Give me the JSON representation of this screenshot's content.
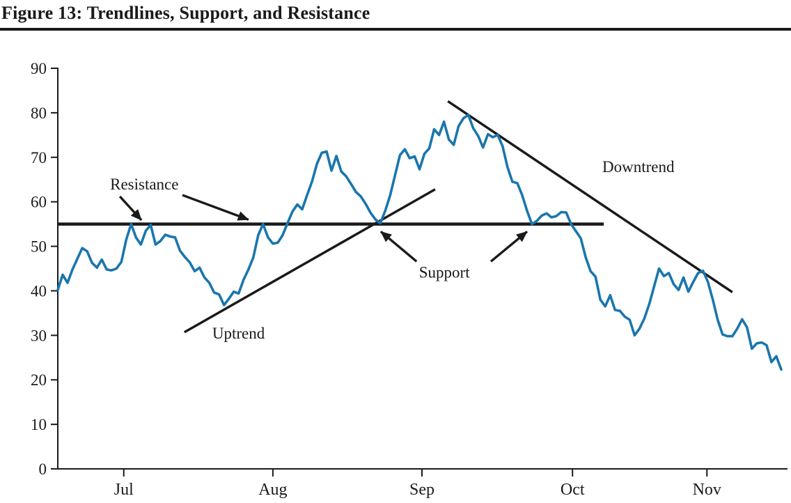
{
  "figure": {
    "title": "Figure 13: Trendlines, Support, and Resistance"
  },
  "colors": {
    "ink": "#1a1a1a",
    "price_line": "#1a76ad",
    "background": "#ffffff"
  },
  "chart_data": {
    "type": "line",
    "title": "Figure 13: Trendlines, Support, and Resistance",
    "xlabel": "",
    "ylabel": "",
    "grid": false,
    "legend": "none",
    "y_axis": {
      "min": 0,
      "max": 90,
      "tick_step": 10,
      "ticks": [
        90,
        80,
        70,
        60,
        50,
        40,
        30,
        20,
        10,
        0
      ]
    },
    "x_axis": {
      "unit": "trading-day index",
      "months": [
        {
          "label": "Jul",
          "day": 13.5
        },
        {
          "label": "Aug",
          "day": 44.0
        },
        {
          "label": "Sep",
          "day": 74.5
        },
        {
          "label": "Oct",
          "day": 105.3
        },
        {
          "label": "Nov",
          "day": 132.8
        }
      ]
    },
    "series": [
      {
        "name": "price",
        "values": [
          40.2,
          43.6,
          41.8,
          44.8,
          47.2,
          49.6,
          48.9,
          46.3,
          45.2,
          47.0,
          44.8,
          44.6,
          45.0,
          46.5,
          51.5,
          55.0,
          52.0,
          50.4,
          53.5,
          54.8,
          50.4,
          51.2,
          52.6,
          52.2,
          52.0,
          49.0,
          47.6,
          46.4,
          44.4,
          45.2,
          43.0,
          41.8,
          39.6,
          39.2,
          36.8,
          38.2,
          39.8,
          39.4,
          42.5,
          44.8,
          47.5,
          52.5,
          55.0,
          52.0,
          50.6,
          50.8,
          52.5,
          55.2,
          57.8,
          59.4,
          58.3,
          61.5,
          64.5,
          68.5,
          71.0,
          71.3,
          67.0,
          70.3,
          66.8,
          65.7,
          64.0,
          62.2,
          61.2,
          59.5,
          57.5,
          56.0,
          55.2,
          58.0,
          61.5,
          66.0,
          70.5,
          71.8,
          69.8,
          70.2,
          67.3,
          70.8,
          72.0,
          76.3,
          75.0,
          78.0,
          74.0,
          72.8,
          77.0,
          78.8,
          79.5,
          76.5,
          74.8,
          72.2,
          75.2,
          74.5,
          75.0,
          72.5,
          67.8,
          64.5,
          64.2,
          61.5,
          58.0,
          55.0,
          55.7,
          56.9,
          57.4,
          56.5,
          56.8,
          57.7,
          57.6,
          55.0,
          53.4,
          51.8,
          47.5,
          44.4,
          43.2,
          38.0,
          36.5,
          39.0,
          35.7,
          35.5,
          34.2,
          33.5,
          30.0,
          31.5,
          33.8,
          37.0,
          41.0,
          45.0,
          43.3,
          44.0,
          41.5,
          40.2,
          43.0,
          39.8,
          42.0,
          44.0,
          44.5,
          42.0,
          38.0,
          33.5,
          30.2,
          29.8,
          29.8,
          31.5,
          33.6,
          31.8,
          27.0,
          28.2,
          28.4,
          27.8,
          24.0,
          25.3,
          22.3
        ]
      }
    ],
    "annotations": {
      "resistance_support_line": {
        "value": 55,
        "from_day": 0,
        "to_day": 111.7
      },
      "uptrend_line": {
        "from": {
          "day": 25.9,
          "value": 30.7
        },
        "to": {
          "day": 77.2,
          "value": 62.8
        }
      },
      "downtrend_line": {
        "from": {
          "day": 79.8,
          "value": 82.6
        },
        "to": {
          "day": 138.0,
          "value": 39.7
        }
      },
      "labels": [
        {
          "id": "resistance",
          "text": "Resistance",
          "day": 10.7,
          "value": 62.8
        },
        {
          "id": "support",
          "text": "Support",
          "day": 73.9,
          "value": 43.0
        },
        {
          "id": "uptrend",
          "text": "Uptrend",
          "day": 31.6,
          "value": 29.3
        },
        {
          "id": "downtrend",
          "text": "Downtrend",
          "day": 111.4,
          "value": 66.7
        }
      ],
      "arrows": [
        {
          "id": "resistance-arrow-1",
          "from": {
            "day": 12.7,
            "value": 61.2
          },
          "to": {
            "day": 17.1,
            "value": 55.9
          }
        },
        {
          "id": "resistance-arrow-2",
          "from": {
            "day": 25.5,
            "value": 61.5
          },
          "to": {
            "day": 39.0,
            "value": 56.0
          }
        },
        {
          "id": "support-arrow-1",
          "from": {
            "day": 73.4,
            "value": 46.6
          },
          "to": {
            "day": 66.1,
            "value": 53.3
          }
        },
        {
          "id": "support-arrow-2",
          "from": {
            "day": 88.6,
            "value": 46.6
          },
          "to": {
            "day": 96.0,
            "value": 53.3
          }
        }
      ]
    }
  }
}
